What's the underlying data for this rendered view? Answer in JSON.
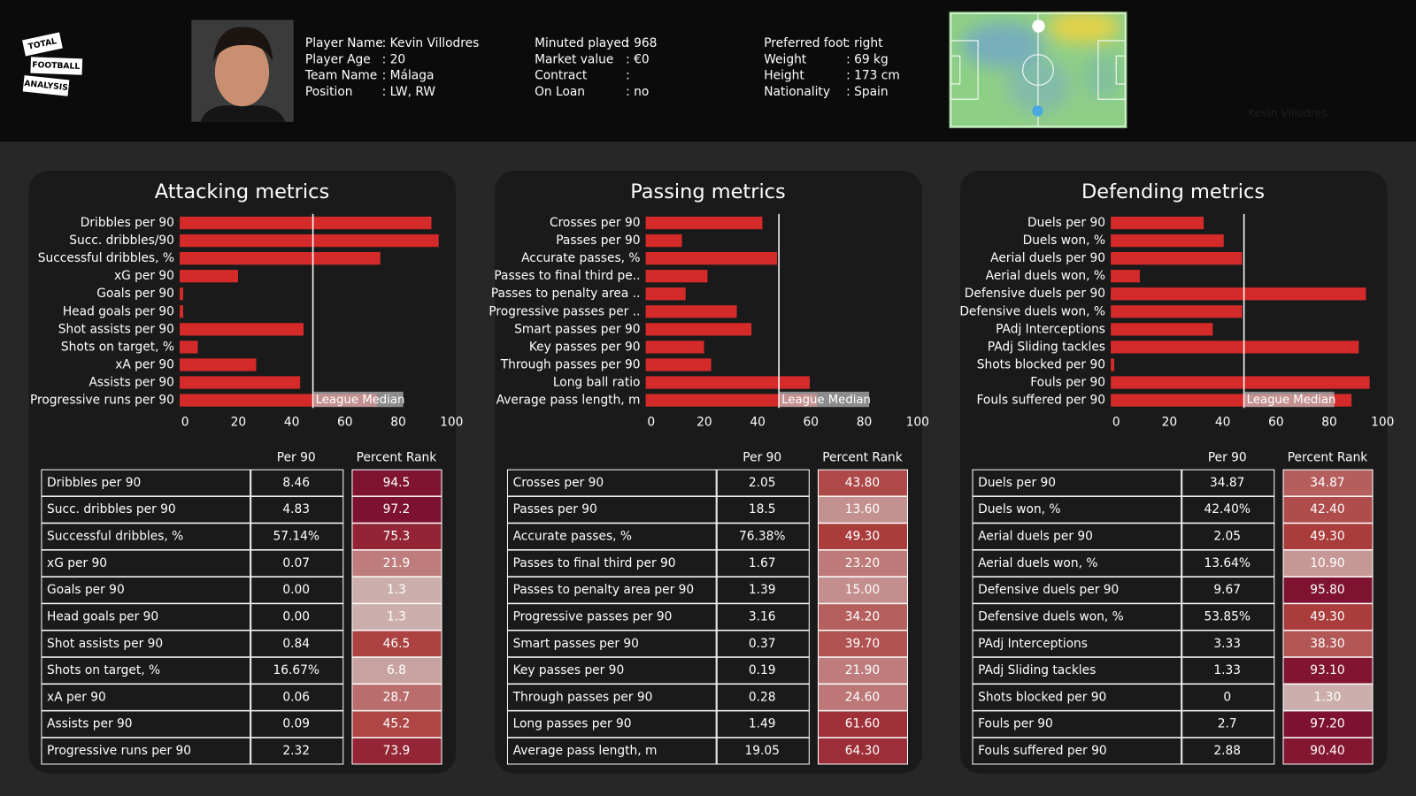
{
  "logo": [
    "TOTAL",
    "FOOTBALL",
    "ANALYSIS"
  ],
  "header": {
    "columns": [
      [
        {
          "label": "Player Name",
          "value": ": Kevin Villodres"
        },
        {
          "label": "Player Age",
          "value": ": 20"
        },
        {
          "label": "Team Name",
          "value": ": Málaga"
        },
        {
          "label": "Position",
          "value": ": LW, RW"
        }
      ],
      [
        {
          "label": "Minuted played",
          "value": ": 968"
        },
        {
          "label": "Market value",
          "value": ": €0"
        },
        {
          "label": "Contract",
          "value": ":"
        },
        {
          "label": "On Loan",
          "value": ": no"
        }
      ],
      [
        {
          "label": "Preferred foot",
          "value": ": right"
        },
        {
          "label": "Weight",
          "value": ": 69 kg"
        },
        {
          "label": "Height",
          "value": ": 173 cm"
        },
        {
          "label": "Nationality",
          "value": ": Spain"
        }
      ]
    ],
    "watermark": "Kevin Villodres"
  },
  "chart_data": [
    {
      "type": "bar",
      "orientation": "horizontal",
      "title": "Attacking metrics",
      "color": "#d42a2a",
      "categories": [
        "Dribbles per 90",
        "Succ. dribbles/90",
        "Successful dribbles, %",
        "xG per 90",
        "Goals per 90",
        "Head goals per 90",
        "Shot assists per 90",
        "Shots on target, %",
        "xA per 90",
        "Assists per 90",
        "Progressive runs per 90"
      ],
      "values": [
        94.5,
        97.2,
        75.3,
        21.9,
        1.3,
        1.3,
        46.5,
        6.8,
        28.7,
        45.2,
        73.9
      ],
      "xlim": [
        0,
        100
      ],
      "xticks": [
        0,
        20,
        40,
        60,
        80,
        100
      ],
      "median": 50,
      "median_label": "League Median"
    },
    {
      "type": "bar",
      "orientation": "horizontal",
      "title": "Passing metrics",
      "color": "#d42a2a",
      "categories": [
        "Crosses per 90",
        "Passes per 90",
        "Accurate passes, %",
        "Passes to final third pe..",
        "Passes to penalty area ..",
        "Progressive passes per ..",
        "Smart passes per 90",
        "Key passes per 90",
        "Through passes per 90",
        "Long ball ratio",
        "Average pass length, m"
      ],
      "values": [
        43.8,
        13.6,
        49.3,
        23.2,
        15.0,
        34.2,
        39.7,
        21.9,
        24.6,
        61.6,
        64.3
      ],
      "xlim": [
        0,
        100
      ],
      "xticks": [
        0,
        20,
        40,
        60,
        80,
        100
      ],
      "median": 50,
      "median_label": "League Median"
    },
    {
      "type": "bar",
      "orientation": "horizontal",
      "title": "Defending metrics",
      "color": "#d42a2a",
      "categories": [
        "Duels per 90",
        "Duels won, %",
        "Aerial duels per 90",
        "Aerial duels won, %",
        "Defensive duels per 90",
        "Defensive duels won, %",
        "PAdj Interceptions",
        "PAdj Sliding tackles",
        "Shots blocked per 90",
        "Fouls per 90",
        "Fouls suffered per 90"
      ],
      "values": [
        34.87,
        42.4,
        49.3,
        10.9,
        95.8,
        49.3,
        38.3,
        93.1,
        1.3,
        97.2,
        90.4
      ],
      "xlim": [
        0,
        100
      ],
      "xticks": [
        0,
        20,
        40,
        60,
        80,
        100
      ],
      "median": 50,
      "median_label": "League Median"
    }
  ],
  "tables": [
    {
      "columns": [
        "Per 90",
        "Percent Rank"
      ],
      "rows": [
        [
          "Dribbles per 90",
          "8.46",
          "94.5"
        ],
        [
          "Succ. dribbles per 90",
          "4.83",
          "97.2"
        ],
        [
          "Successful dribbles, %",
          "57.14%",
          "75.3"
        ],
        [
          "xG per 90",
          "0.07",
          "21.9"
        ],
        [
          "Goals per 90",
          "0.00",
          "1.3"
        ],
        [
          "Head goals per 90",
          "0.00",
          "1.3"
        ],
        [
          "Shot assists per 90",
          "0.84",
          "46.5"
        ],
        [
          "Shots on target, %",
          "16.67%",
          "6.8"
        ],
        [
          "xA per 90",
          "0.06",
          "28.7"
        ],
        [
          "Assists per 90",
          "0.09",
          "45.2"
        ],
        [
          "Progressive runs per 90",
          "2.32",
          "73.9"
        ]
      ]
    },
    {
      "columns": [
        "Per 90",
        "Percent Rank"
      ],
      "rows": [
        [
          "Crosses per 90",
          "2.05",
          "43.80"
        ],
        [
          "Passes per 90",
          "18.5",
          "13.60"
        ],
        [
          "Accurate passes, %",
          "76.38%",
          "49.30"
        ],
        [
          "Passes to final third per 90",
          "1.67",
          "23.20"
        ],
        [
          "Passes to penalty area per 90",
          "1.39",
          "15.00"
        ],
        [
          "Progressive passes per 90",
          "3.16",
          "34.20"
        ],
        [
          "Smart passes per 90",
          "0.37",
          "39.70"
        ],
        [
          "Key passes per 90",
          "0.19",
          "21.90"
        ],
        [
          "Through passes per 90",
          "0.28",
          "24.60"
        ],
        [
          "Long passes per 90",
          "1.49",
          "61.60"
        ],
        [
          "Average pass length, m",
          "19.05",
          "64.30"
        ]
      ]
    },
    {
      "columns": [
        "Per 90",
        "Percent Rank"
      ],
      "rows": [
        [
          "Duels per 90",
          "34.87",
          "34.87"
        ],
        [
          "Duels won, %",
          "42.40%",
          "42.40"
        ],
        [
          "Aerial duels per 90",
          "2.05",
          "49.30"
        ],
        [
          "Aerial duels won, %",
          "13.64%",
          "10.90"
        ],
        [
          "Defensive duels per 90",
          "9.67",
          "95.80"
        ],
        [
          "Defensive duels won, %",
          "53.85%",
          "49.30"
        ],
        [
          "PAdj Interceptions",
          "3.33",
          "38.30"
        ],
        [
          "PAdj Sliding tackles",
          "1.33",
          "93.10"
        ],
        [
          "Shots blocked per 90",
          "0",
          "1.30"
        ],
        [
          "Fouls per 90",
          "2.7",
          "97.20"
        ],
        [
          "Fouls suffered per 90",
          "2.88",
          "90.40"
        ]
      ]
    }
  ]
}
